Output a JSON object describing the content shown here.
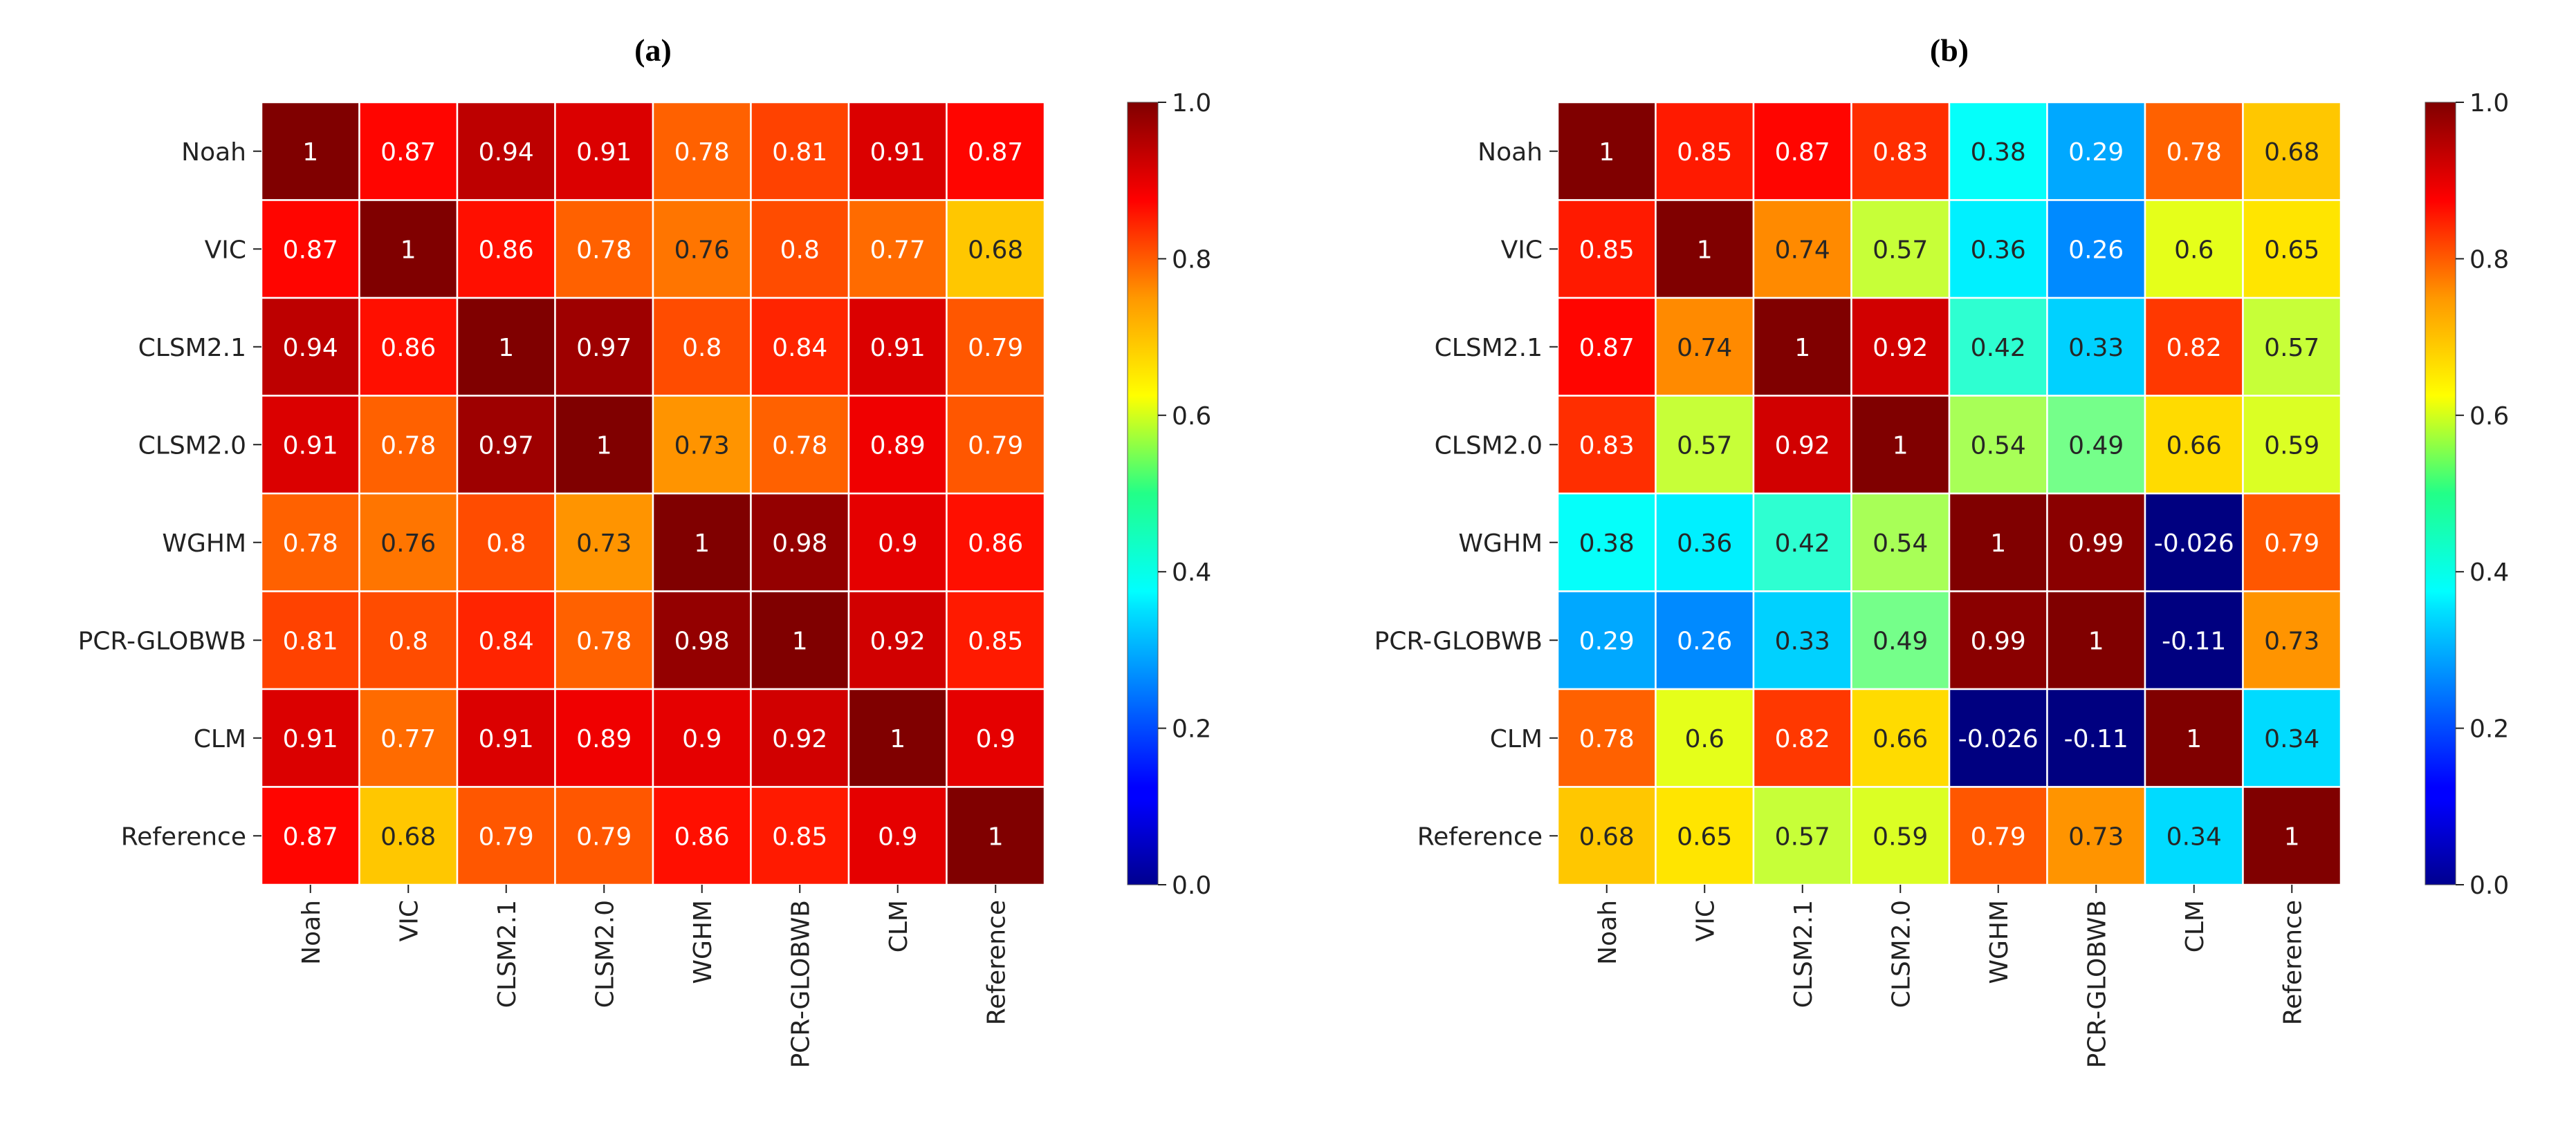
{
  "chart_data": [
    {
      "type": "heatmap",
      "panel_label": "(a)",
      "row_labels": [
        "Noah",
        "VIC",
        "CLSM2.1",
        "CLSM2.0",
        "WGHM",
        "PCR-GLOBWB",
        "CLM",
        "Reference"
      ],
      "col_labels": [
        "Noah",
        "VIC",
        "CLSM2.1",
        "CLSM2.0",
        "WGHM",
        "PCR-GLOBWB",
        "CLM",
        "Reference"
      ],
      "values": [
        [
          1,
          0.87,
          0.94,
          0.91,
          0.78,
          0.81,
          0.91,
          0.87
        ],
        [
          0.87,
          1,
          0.86,
          0.78,
          0.76,
          0.8,
          0.77,
          0.68
        ],
        [
          0.94,
          0.86,
          1,
          0.97,
          0.8,
          0.84,
          0.91,
          0.79
        ],
        [
          0.91,
          0.78,
          0.97,
          1,
          0.73,
          0.78,
          0.89,
          0.79
        ],
        [
          0.78,
          0.76,
          0.8,
          0.73,
          1,
          0.98,
          0.9,
          0.86
        ],
        [
          0.81,
          0.8,
          0.84,
          0.78,
          0.98,
          1,
          0.92,
          0.85
        ],
        [
          0.91,
          0.77,
          0.91,
          0.89,
          0.9,
          0.92,
          1,
          0.9
        ],
        [
          0.87,
          0.68,
          0.79,
          0.79,
          0.86,
          0.85,
          0.9,
          1
        ]
      ],
      "colorbar": {
        "colormap": "jet",
        "vmin": 0,
        "vmax": 1,
        "ticks": [
          "0.0",
          "0.2",
          "0.4",
          "0.6",
          "0.8",
          "1.0"
        ]
      }
    },
    {
      "type": "heatmap",
      "panel_label": "(b)",
      "row_labels": [
        "Noah",
        "VIC",
        "CLSM2.1",
        "CLSM2.0",
        "WGHM",
        "PCR-GLOBWB",
        "CLM",
        "Reference"
      ],
      "col_labels": [
        "Noah",
        "VIC",
        "CLSM2.1",
        "CLSM2.0",
        "WGHM",
        "PCR-GLOBWB",
        "CLM",
        "Reference"
      ],
      "values": [
        [
          1,
          0.85,
          0.87,
          0.83,
          0.38,
          0.29,
          0.78,
          0.68
        ],
        [
          0.85,
          1,
          0.74,
          0.57,
          0.36,
          0.26,
          0.6,
          0.65
        ],
        [
          0.87,
          0.74,
          1,
          0.92,
          0.42,
          0.33,
          0.82,
          0.57
        ],
        [
          0.83,
          0.57,
          0.92,
          1,
          0.54,
          0.49,
          0.66,
          0.59
        ],
        [
          0.38,
          0.36,
          0.42,
          0.54,
          1,
          0.99,
          -0.026,
          0.79
        ],
        [
          0.29,
          0.26,
          0.33,
          0.49,
          0.99,
          1,
          -0.11,
          0.73
        ],
        [
          0.78,
          0.6,
          0.82,
          0.66,
          -0.026,
          -0.11,
          1,
          0.34
        ],
        [
          0.68,
          0.65,
          0.57,
          0.59,
          0.79,
          0.73,
          0.34,
          1
        ]
      ],
      "colorbar": {
        "colormap": "jet",
        "vmin": 0,
        "vmax": 1,
        "ticks": [
          "0.0",
          "0.2",
          "0.4",
          "0.6",
          "0.8",
          "1.0"
        ]
      }
    }
  ]
}
